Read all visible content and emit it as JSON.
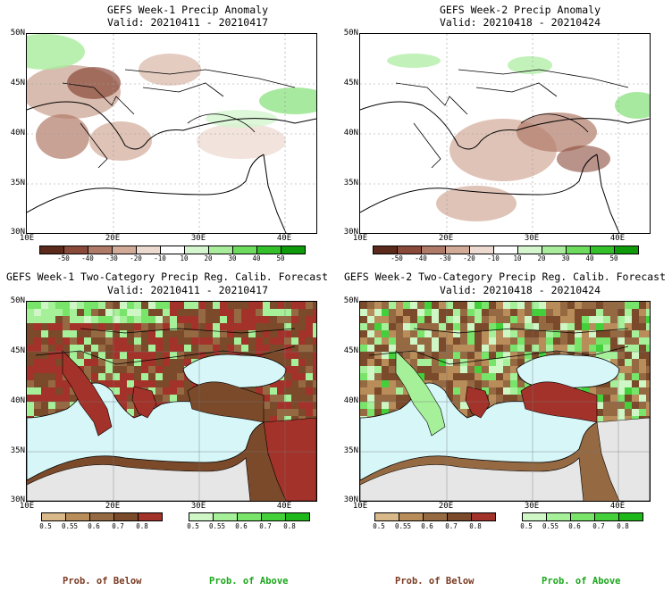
{
  "panels": [
    {
      "title1": "GEFS Week-1 Precip Anomaly",
      "title2": "Valid: 20210411 - 20210417"
    },
    {
      "title1": "GEFS Week-2 Precip Anomaly",
      "title2": "Valid: 20210418 - 20210424"
    },
    {
      "title1": "GEFS Week-1 Two-Category Precip Reg. Calib. Forecast",
      "title2": "Valid: 20210411 - 20210417"
    },
    {
      "title1": "GEFS Week-2 Two-Category Precip Reg. Calib. Forecast",
      "title2": "Valid: 20210418 - 20210424"
    }
  ],
  "axes": {
    "lat_labels": [
      "50N",
      "45N",
      "40N",
      "35N",
      "30N"
    ],
    "lon_labels": [
      "10E",
      "20E",
      "30E",
      "40E"
    ]
  },
  "anomaly_colorbar": {
    "labels": [
      "-50",
      "-40",
      "-30",
      "-20",
      "-10",
      "10",
      "20",
      "30",
      "40",
      "50"
    ],
    "colors": [
      "#5c2a1c",
      "#8a4a3a",
      "#b07a68",
      "#d2aa98",
      "#ecd9cf",
      "#ffffff",
      "#d5f5cf",
      "#a8ec9c",
      "#6ddb5e",
      "#33c02a",
      "#0e9a0a"
    ]
  },
  "prob_colorbars": {
    "below_labels": [
      "0.5",
      "0.55",
      "0.6",
      "0.7",
      "0.8"
    ],
    "below_colors": [
      "#d9b98a",
      "#b88d5a",
      "#956a43",
      "#7a4a2a",
      "#a3322a"
    ],
    "above_labels": [
      "0.5",
      "0.55",
      "0.6",
      "0.7",
      "0.8"
    ],
    "above_colors": [
      "#cff7c6",
      "#a6f09a",
      "#78e46a",
      "#44d03a",
      "#1fb81a"
    ]
  },
  "footer": {
    "below_left": "Prob. of Below",
    "above_left": "Prob. of Above",
    "below_right": "Prob. of Below",
    "above_right": "Prob. of Above"
  },
  "colors": {
    "sea_fill": "#d6f6f8",
    "no_data_fill": "#e6e6e6",
    "below_text": "#7a3a22",
    "above_text": "#1aa71a"
  }
}
